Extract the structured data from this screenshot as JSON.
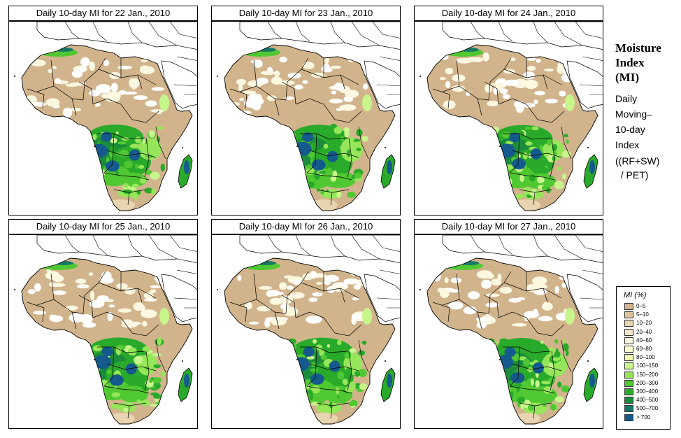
{
  "panels": [
    {
      "title": "Daily 10-day MI for  22 Jan., 2010"
    },
    {
      "title": "Daily 10-day MI for  23 Jan., 2010"
    },
    {
      "title": "Daily 10-day MI for  24 Jan., 2010"
    },
    {
      "title": "Daily 10-day MI for  25 Jan., 2010"
    },
    {
      "title": "Daily 10-day MI for  26 Jan., 2010"
    },
    {
      "title": "Daily 10-day MI for  27 Jan., 2010"
    }
  ],
  "side": {
    "title_lines": [
      "Moisture",
      "Index",
      "(MI)"
    ],
    "desc_lines": [
      "Daily",
      "Moving–",
      "10-day",
      "Index"
    ],
    "formula_lines": [
      "((RF+SW)",
      "  / PET)"
    ]
  },
  "legend": {
    "title": "MI (%)",
    "items": [
      {
        "label": "0–5",
        "color": "#d2b48c"
      },
      {
        "label": "5–10",
        "color": "#dcc39c"
      },
      {
        "label": "10–20",
        "color": "#e8d4b0"
      },
      {
        "label": "20–40",
        "color": "#f3e6c8"
      },
      {
        "label": "40–60",
        "color": "#fbf7e0"
      },
      {
        "label": "60–80",
        "color": "#ffffd0"
      },
      {
        "label": "80–100",
        "color": "#f0ffb0"
      },
      {
        "label": "100–150",
        "color": "#c8f58c"
      },
      {
        "label": "150–200",
        "color": "#96e65a"
      },
      {
        "label": "200–300",
        "color": "#50c832"
      },
      {
        "label": "300–400",
        "color": "#2aaa2a"
      },
      {
        "label": "400–500",
        "color": "#1a8c3c"
      },
      {
        "label": "500–700",
        "color": "#157864"
      },
      {
        "label": "> 700",
        "color": "#145a8c"
      }
    ]
  }
}
